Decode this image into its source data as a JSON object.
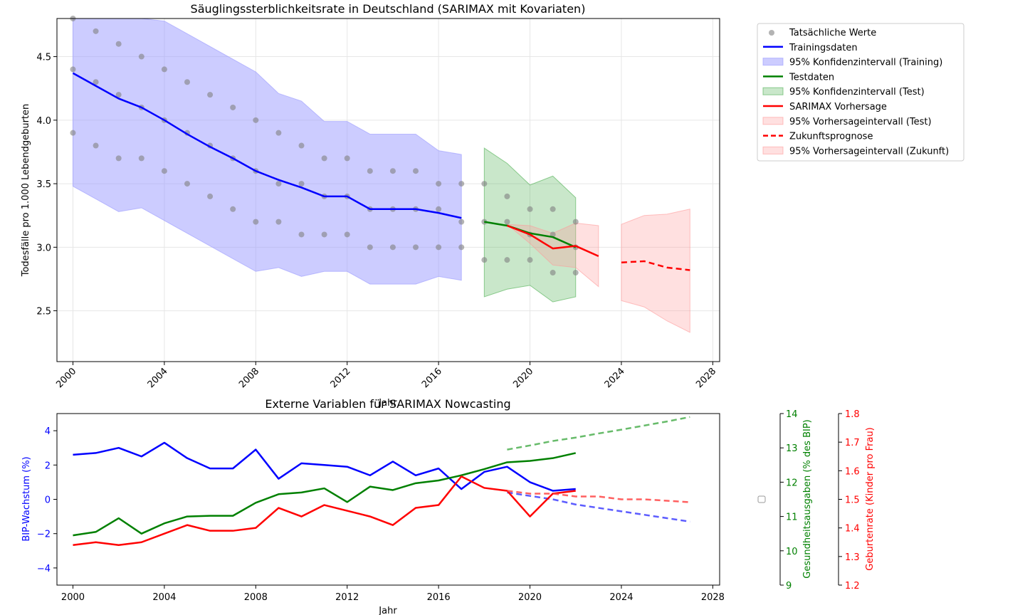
{
  "colors": {
    "training": "#0000ff",
    "test": "#008000",
    "forecast": "#ff0000",
    "actual": "#808080",
    "ci_training": "#ccccff",
    "ci_test": "#b3e0b3",
    "ci_forecast": "#ffdede",
    "grid": "#e6e6e6",
    "axis": "#000000"
  },
  "chart_data": [
    {
      "type": "line",
      "title": "Säuglingssterblichkeitsrate in Deutschland (SARIMAX mit Kovariaten)",
      "xlabel": "Jahr",
      "ylabel": "Todesfälle pro 1.000 Lebendgeburten",
      "xlim": [
        1999.3,
        2028.3
      ],
      "ylim": [
        2.1,
        4.8
      ],
      "xticks": [
        2000,
        2004,
        2008,
        2012,
        2016,
        2020,
        2024,
        2028
      ],
      "xtick_labels": [
        "2000",
        "2004",
        "2008",
        "2012",
        "2016",
        "2020",
        "2024",
        "2028"
      ],
      "yticks": [
        2.5,
        3.0,
        3.5,
        4.0,
        4.5
      ],
      "ytick_labels": [
        "2.5",
        "3.0",
        "3.5",
        "4.0",
        "4.5"
      ],
      "grid": true,
      "legend_position": "outside-right-top",
      "legend": [
        {
          "label": "Tatsächliche Werte",
          "kind": "marker",
          "color": "#808080"
        },
        {
          "label": "Trainingsdaten",
          "kind": "line",
          "color": "#0000ff"
        },
        {
          "label": "95% Konfidenzintervall (Training)",
          "kind": "patch",
          "color": "#ccccff"
        },
        {
          "label": "Testdaten",
          "kind": "line",
          "color": "#008000"
        },
        {
          "label": "95% Konfidenzintervall (Test)",
          "kind": "patch",
          "color": "#b3e0b3"
        },
        {
          "label": "SARIMAX Vorhersage",
          "kind": "line",
          "color": "#ff0000"
        },
        {
          "label": "95% Vorhersageintervall (Test)",
          "kind": "patch",
          "color": "#ffdede"
        },
        {
          "label": "Zukunftsprognose",
          "kind": "dashed",
          "color": "#ff0000"
        },
        {
          "label": "95% Vorhersageintervall (Zukunft)",
          "kind": "patch",
          "color": "#ffdede"
        }
      ],
      "actual_points": [
        [
          2000,
          4.8
        ],
        [
          2000,
          4.4
        ],
        [
          2000,
          3.9
        ],
        [
          2001,
          4.7
        ],
        [
          2001,
          4.3
        ],
        [
          2001,
          3.8
        ],
        [
          2002,
          4.6
        ],
        [
          2002,
          4.2
        ],
        [
          2002,
          3.7
        ],
        [
          2003,
          4.5
        ],
        [
          2003,
          4.1
        ],
        [
          2003,
          3.7
        ],
        [
          2004,
          4.4
        ],
        [
          2004,
          4.0
        ],
        [
          2004,
          3.6
        ],
        [
          2005,
          4.3
        ],
        [
          2005,
          3.9
        ],
        [
          2005,
          3.5
        ],
        [
          2006,
          4.2
        ],
        [
          2006,
          3.8
        ],
        [
          2006,
          3.4
        ],
        [
          2007,
          4.1
        ],
        [
          2007,
          3.7
        ],
        [
          2007,
          3.3
        ],
        [
          2008,
          4.0
        ],
        [
          2008,
          3.6
        ],
        [
          2008,
          3.2
        ],
        [
          2009,
          3.9
        ],
        [
          2009,
          3.5
        ],
        [
          2009,
          3.2
        ],
        [
          2010,
          3.8
        ],
        [
          2010,
          3.5
        ],
        [
          2010,
          3.1
        ],
        [
          2011,
          3.7
        ],
        [
          2011,
          3.4
        ],
        [
          2011,
          3.1
        ],
        [
          2012,
          3.7
        ],
        [
          2012,
          3.4
        ],
        [
          2012,
          3.1
        ],
        [
          2013,
          3.6
        ],
        [
          2013,
          3.3
        ],
        [
          2013,
          3.0
        ],
        [
          2014,
          3.6
        ],
        [
          2014,
          3.3
        ],
        [
          2014,
          3.0
        ],
        [
          2015,
          3.6
        ],
        [
          2015,
          3.3
        ],
        [
          2015,
          3.0
        ],
        [
          2016,
          3.5
        ],
        [
          2016,
          3.3
        ],
        [
          2016,
          3.0
        ],
        [
          2017,
          3.5
        ],
        [
          2017,
          3.2
        ],
        [
          2017,
          3.0
        ],
        [
          2018,
          3.5
        ],
        [
          2018,
          3.2
        ],
        [
          2018,
          2.9
        ],
        [
          2019,
          3.4
        ],
        [
          2019,
          3.2
        ],
        [
          2019,
          2.9
        ],
        [
          2020,
          3.3
        ],
        [
          2020,
          3.1
        ],
        [
          2020,
          2.9
        ],
        [
          2021,
          3.3
        ],
        [
          2021,
          3.1
        ],
        [
          2021,
          2.8
        ],
        [
          2022,
          3.2
        ],
        [
          2022,
          3.0
        ],
        [
          2022,
          2.8
        ]
      ],
      "training": {
        "x": [
          2000,
          2001,
          2002,
          2003,
          2004,
          2005,
          2006,
          2007,
          2008,
          2009,
          2010,
          2011,
          2012,
          2013,
          2014,
          2015,
          2016,
          2017
        ],
        "y": [
          4.37,
          4.27,
          4.17,
          4.1,
          4.0,
          3.89,
          3.79,
          3.7,
          3.6,
          3.53,
          3.47,
          3.4,
          3.4,
          3.3,
          3.3,
          3.3,
          3.27,
          3.23
        ],
        "lower": [
          3.48,
          3.38,
          3.28,
          3.31,
          3.21,
          3.11,
          3.01,
          2.91,
          2.81,
          2.84,
          2.77,
          2.81,
          2.81,
          2.71,
          2.71,
          2.71,
          2.77,
          2.74
        ],
        "upper": [
          4.8,
          4.8,
          4.8,
          4.8,
          4.78,
          4.68,
          4.58,
          4.48,
          4.38,
          4.21,
          4.15,
          3.99,
          3.99,
          3.89,
          3.89,
          3.89,
          3.76,
          3.73
        ]
      },
      "test": {
        "x": [
          2018,
          2019,
          2020,
          2021,
          2022
        ],
        "y": [
          3.2,
          3.17,
          3.11,
          3.08,
          3.0
        ],
        "lower": [
          2.61,
          2.67,
          2.7,
          2.57,
          2.61
        ],
        "upper": [
          3.78,
          3.66,
          3.49,
          3.56,
          3.39
        ]
      },
      "forecast": {
        "x": [
          2019,
          2020,
          2021,
          2022,
          2023
        ],
        "y": [
          3.17,
          3.1,
          2.99,
          3.01,
          2.93
        ],
        "lower": [
          3.18,
          3.03,
          2.86,
          2.84,
          2.69
        ],
        "upper": [
          3.18,
          3.17,
          3.11,
          3.19,
          3.17
        ]
      },
      "future": {
        "x": [
          2024,
          2025,
          2026,
          2027
        ],
        "y": [
          2.88,
          2.89,
          2.84,
          2.82
        ],
        "lower": [
          2.58,
          2.53,
          2.42,
          2.33
        ],
        "upper": [
          3.18,
          3.25,
          3.26,
          3.3
        ]
      }
    },
    {
      "type": "line",
      "title": "Externe Variablen für SARIMAX Nowcasting",
      "xlabel": "Jahr",
      "ylabel": "BIP-Wachstum (%)",
      "ylabel_right1": "Gesundheitsausgaben (% des BIP)",
      "ylabel_right2": "Geburtenrate (Kinder pro Frau)",
      "xlim": [
        1999.3,
        2028.3
      ],
      "ylim": [
        -5,
        5
      ],
      "ylim_right1": [
        9,
        14
      ],
      "ylim_right2": [
        1.2,
        1.8
      ],
      "xticks": [
        2000,
        2004,
        2008,
        2012,
        2016,
        2020,
        2024,
        2028
      ],
      "xtick_labels": [
        "2000",
        "2004",
        "2008",
        "2012",
        "2016",
        "2020",
        "2024",
        "2028"
      ],
      "yticks": [
        -4,
        -2,
        0,
        2,
        4
      ],
      "ytick_labels": [
        "−4",
        "−2",
        "0",
        "2",
        "4"
      ],
      "yticks_right1": [
        9,
        10,
        11,
        12,
        13,
        14
      ],
      "ytick_labels_right1": [
        "9",
        "10",
        "11",
        "12",
        "13",
        "14"
      ],
      "yticks_right2": [
        1.2,
        1.3,
        1.4,
        1.5,
        1.6,
        1.7,
        1.8
      ],
      "ytick_labels_right2": [
        "1.2",
        "1.3",
        "1.4",
        "1.5",
        "1.6",
        "1.7",
        "1.8"
      ],
      "grid": false,
      "series": [
        {
          "axis": "left",
          "color": "#0000ff",
          "style": "solid",
          "x": [
            2000,
            2001,
            2002,
            2003,
            2004,
            2005,
            2006,
            2007,
            2008,
            2009,
            2010,
            2011,
            2012,
            2013,
            2014,
            2015,
            2016,
            2017,
            2018,
            2019,
            2020,
            2021,
            2022
          ],
          "y": [
            2.6,
            2.7,
            3.0,
            2.5,
            3.3,
            2.4,
            1.8,
            1.8,
            2.9,
            1.2,
            2.1,
            2.0,
            1.9,
            1.4,
            2.2,
            1.4,
            1.8,
            0.6,
            1.6,
            1.9,
            1.0,
            0.5,
            0.6
          ]
        },
        {
          "axis": "left",
          "color": "#4040ff",
          "style": "dashed",
          "x": [
            2019,
            2020,
            2021,
            2022,
            2023,
            2024,
            2025,
            2026,
            2027
          ],
          "y": [
            0.4,
            0.2,
            0.0,
            -0.3,
            -0.5,
            -0.7,
            -0.9,
            -1.1,
            -1.3
          ]
        },
        {
          "axis": "right1",
          "color": "#008000",
          "style": "solid",
          "x": [
            2000,
            2001,
            2002,
            2003,
            2004,
            2005,
            2006,
            2007,
            2008,
            2009,
            2010,
            2011,
            2012,
            2013,
            2014,
            2015,
            2016,
            2017,
            2018,
            2019,
            2020,
            2021,
            2022
          ],
          "y": [
            10.45,
            10.55,
            10.95,
            10.5,
            10.8,
            11.0,
            11.02,
            11.02,
            11.4,
            11.65,
            11.7,
            11.82,
            11.42,
            11.87,
            11.77,
            11.97,
            12.05,
            12.2,
            12.38,
            12.58,
            12.62,
            12.7,
            12.85
          ]
        },
        {
          "axis": "right1",
          "color": "#4caf50",
          "style": "dashed",
          "x": [
            2019,
            2020,
            2021,
            2022,
            2023,
            2024,
            2025,
            2026,
            2027
          ],
          "y": [
            12.95,
            13.07,
            13.2,
            13.3,
            13.42,
            13.53,
            13.65,
            13.77,
            13.9
          ]
        },
        {
          "axis": "right2",
          "color": "#ff0000",
          "style": "solid",
          "x": [
            2000,
            2001,
            2002,
            2003,
            2004,
            2005,
            2006,
            2007,
            2008,
            2009,
            2010,
            2011,
            2012,
            2013,
            2014,
            2015,
            2016,
            2017,
            2018,
            2019,
            2020,
            2021,
            2022
          ],
          "y": [
            1.34,
            1.35,
            1.34,
            1.35,
            1.38,
            1.41,
            1.39,
            1.39,
            1.4,
            1.47,
            1.44,
            1.48,
            1.46,
            1.44,
            1.41,
            1.47,
            1.48,
            1.58,
            1.54,
            1.53,
            1.44,
            1.52,
            1.53
          ]
        },
        {
          "axis": "right2",
          "color": "#ff4444",
          "style": "dashed",
          "x": [
            2019,
            2020,
            2021,
            2022,
            2023,
            2024,
            2025,
            2026,
            2027
          ],
          "y": [
            1.53,
            1.52,
            1.52,
            1.51,
            1.51,
            1.5,
            1.5,
            1.495,
            1.49
          ]
        }
      ]
    }
  ]
}
